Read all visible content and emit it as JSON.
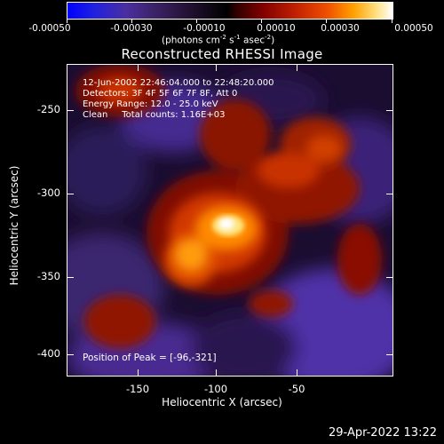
{
  "colorbar": {
    "ticks": [
      "-0.00050",
      "-0.00030",
      "-0.00010",
      "0.00010",
      "0.00030",
      "0.00050"
    ],
    "unit_main": "(photons cm",
    "unit_sup1": "-2",
    "unit_mid1": " s",
    "unit_sup2": "-1",
    "unit_mid2": " asec",
    "unit_sup3": "-2",
    "unit_end": ")"
  },
  "title": "Reconstructed RHESSI Image",
  "info": {
    "line1": "12-Jun-2002 22:46:04.000 to 22:48:20.000",
    "line2": "Detectors: 3F 4F 5F 6F 7F 8F, Att 0",
    "line3": "Energy Range: 12.0 - 25.0 keV",
    "line4": "Clean     Total counts: 1.16E+03"
  },
  "peak": "Position of Peak = [-96,-321]",
  "axes": {
    "xlabel": "Heliocentric X (arcsec)",
    "ylabel": "Heliocentric Y (arcsec)",
    "xticks": [
      "-150",
      "-100",
      "-50"
    ],
    "yticks": [
      "-250",
      "-300",
      "-350",
      "-400"
    ]
  },
  "timestamp": "29-Apr-2022 13:22",
  "colors": {
    "background": "#000000",
    "text": "#ffffff"
  }
}
